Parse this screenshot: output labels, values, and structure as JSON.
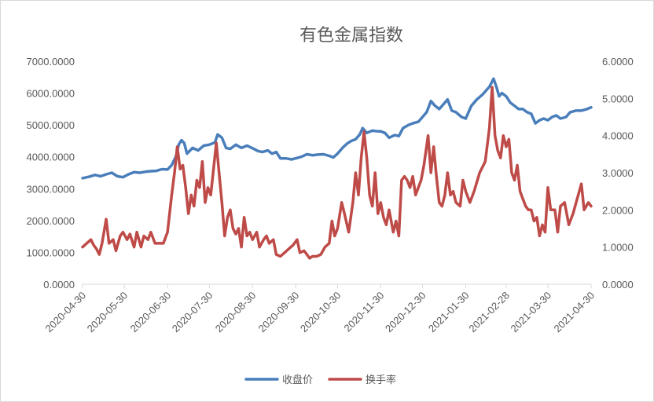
{
  "chart_data": {
    "type": "line",
    "title": "有色金属指数",
    "x_tick_labels": [
      "2020-04-30",
      "2020-05-30",
      "2020-06-30",
      "2020-07-30",
      "2020-08-30",
      "2020-09-30",
      "2020-10-30",
      "2020-11-30",
      "2020-12-30",
      "2021-01-30",
      "2021-02-28",
      "2021-03-30",
      "2021-04-30"
    ],
    "y_left": {
      "min": 0,
      "max": 7000,
      "step": 1000,
      "tick_labels": [
        "0.0000",
        "1000.0000",
        "2000.0000",
        "3000.0000",
        "4000.0000",
        "5000.0000",
        "6000.0000",
        "7000.0000"
      ]
    },
    "y_right": {
      "min": 0,
      "max": 6,
      "step": 1,
      "tick_labels": [
        "0.0000",
        "1.0000",
        "2.0000",
        "3.0000",
        "4.0000",
        "5.0000",
        "6.0000"
      ]
    },
    "grid": false,
    "legend_position": "bottom",
    "series": [
      {
        "name": "收盘价",
        "axis": "left",
        "color": "#4a7ebb",
        "points": [
          [
            "2020-04-30",
            3330
          ],
          [
            "2020-05-05",
            3380
          ],
          [
            "2020-05-09",
            3430
          ],
          [
            "2020-05-13",
            3390
          ],
          [
            "2020-05-17",
            3450
          ],
          [
            "2020-05-21",
            3500
          ],
          [
            "2020-05-25",
            3390
          ],
          [
            "2020-05-29",
            3360
          ],
          [
            "2020-06-02",
            3450
          ],
          [
            "2020-06-06",
            3520
          ],
          [
            "2020-06-10",
            3500
          ],
          [
            "2020-06-14",
            3530
          ],
          [
            "2020-06-18",
            3550
          ],
          [
            "2020-06-22",
            3560
          ],
          [
            "2020-06-26",
            3610
          ],
          [
            "2020-06-30",
            3600
          ],
          [
            "2020-07-03",
            3740
          ],
          [
            "2020-07-06",
            4010
          ],
          [
            "2020-07-08",
            4380
          ],
          [
            "2020-07-10",
            4520
          ],
          [
            "2020-07-12",
            4430
          ],
          [
            "2020-07-14",
            4100
          ],
          [
            "2020-07-18",
            4280
          ],
          [
            "2020-07-22",
            4200
          ],
          [
            "2020-07-26",
            4350
          ],
          [
            "2020-07-30",
            4380
          ],
          [
            "2020-08-03",
            4450
          ],
          [
            "2020-08-05",
            4700
          ],
          [
            "2020-08-08",
            4600
          ],
          [
            "2020-08-11",
            4280
          ],
          [
            "2020-08-14",
            4250
          ],
          [
            "2020-08-18",
            4380
          ],
          [
            "2020-08-22",
            4280
          ],
          [
            "2020-08-26",
            4350
          ],
          [
            "2020-08-30",
            4270
          ],
          [
            "2020-09-03",
            4180
          ],
          [
            "2020-09-06",
            4150
          ],
          [
            "2020-09-10",
            4200
          ],
          [
            "2020-09-13",
            4100
          ],
          [
            "2020-09-16",
            4150
          ],
          [
            "2020-09-19",
            3950
          ],
          [
            "2020-09-23",
            3950
          ],
          [
            "2020-09-27",
            3920
          ],
          [
            "2020-09-30",
            3950
          ],
          [
            "2020-10-04",
            4000
          ],
          [
            "2020-10-08",
            4080
          ],
          [
            "2020-10-12",
            4050
          ],
          [
            "2020-10-16",
            4070
          ],
          [
            "2020-10-20",
            4080
          ],
          [
            "2020-10-24",
            4030
          ],
          [
            "2020-10-27",
            3980
          ],
          [
            "2020-10-30",
            4100
          ],
          [
            "2020-11-03",
            4300
          ],
          [
            "2020-11-06",
            4420
          ],
          [
            "2020-11-09",
            4500
          ],
          [
            "2020-11-12",
            4550
          ],
          [
            "2020-11-15",
            4700
          ],
          [
            "2020-11-17",
            4900
          ],
          [
            "2020-11-20",
            4750
          ],
          [
            "2020-11-24",
            4820
          ],
          [
            "2020-11-28",
            4800
          ],
          [
            "2020-11-30",
            4800
          ],
          [
            "2020-12-03",
            4750
          ],
          [
            "2020-12-06",
            4600
          ],
          [
            "2020-12-10",
            4680
          ],
          [
            "2020-12-13",
            4650
          ],
          [
            "2020-12-16",
            4900
          ],
          [
            "2020-12-20",
            5000
          ],
          [
            "2020-12-23",
            5050
          ],
          [
            "2020-12-27",
            5100
          ],
          [
            "2020-12-30",
            5250
          ],
          [
            "2021-01-02",
            5400
          ],
          [
            "2021-01-05",
            5750
          ],
          [
            "2021-01-08",
            5600
          ],
          [
            "2021-01-11",
            5500
          ],
          [
            "2021-01-14",
            5650
          ],
          [
            "2021-01-17",
            5800
          ],
          [
            "2021-01-20",
            5450
          ],
          [
            "2021-01-23",
            5400
          ],
          [
            "2021-01-27",
            5250
          ],
          [
            "2021-01-30",
            5200
          ],
          [
            "2021-02-03",
            5600
          ],
          [
            "2021-02-07",
            5800
          ],
          [
            "2021-02-11",
            5950
          ],
          [
            "2021-02-16",
            6200
          ],
          [
            "2021-02-19",
            6450
          ],
          [
            "2021-02-21",
            6200
          ],
          [
            "2021-02-23",
            5900
          ],
          [
            "2021-02-25",
            6000
          ],
          [
            "2021-02-28",
            5900
          ],
          [
            "2021-03-03",
            5700
          ],
          [
            "2021-03-06",
            5600
          ],
          [
            "2021-03-09",
            5500
          ],
          [
            "2021-03-12",
            5500
          ],
          [
            "2021-03-15",
            5400
          ],
          [
            "2021-03-18",
            5350
          ],
          [
            "2021-03-21",
            5050
          ],
          [
            "2021-03-24",
            5150
          ],
          [
            "2021-03-27",
            5200
          ],
          [
            "2021-03-30",
            5150
          ],
          [
            "2021-04-02",
            5250
          ],
          [
            "2021-04-05",
            5300
          ],
          [
            "2021-04-08",
            5200
          ],
          [
            "2021-04-12",
            5250
          ],
          [
            "2021-04-15",
            5400
          ],
          [
            "2021-04-19",
            5450
          ],
          [
            "2021-04-23",
            5450
          ],
          [
            "2021-04-27",
            5500
          ],
          [
            "2021-04-30",
            5550
          ]
        ]
      },
      {
        "name": "换手率",
        "axis": "right",
        "color": "#be4b48",
        "points": [
          [
            "2020-04-30",
            1.0
          ],
          [
            "2020-05-03",
            1.1
          ],
          [
            "2020-05-06",
            1.2
          ],
          [
            "2020-05-08",
            1.05
          ],
          [
            "2020-05-10",
            0.95
          ],
          [
            "2020-05-12",
            0.8
          ],
          [
            "2020-05-14",
            1.1
          ],
          [
            "2020-05-17",
            1.75
          ],
          [
            "2020-05-19",
            1.1
          ],
          [
            "2020-05-22",
            1.2
          ],
          [
            "2020-05-24",
            0.9
          ],
          [
            "2020-05-27",
            1.3
          ],
          [
            "2020-05-29",
            1.4
          ],
          [
            "2020-06-01",
            1.2
          ],
          [
            "2020-06-03",
            1.35
          ],
          [
            "2020-06-06",
            1.0
          ],
          [
            "2020-06-08",
            1.4
          ],
          [
            "2020-06-11",
            1.0
          ],
          [
            "2020-06-13",
            1.3
          ],
          [
            "2020-06-16",
            1.2
          ],
          [
            "2020-06-18",
            1.4
          ],
          [
            "2020-06-21",
            1.1
          ],
          [
            "2020-06-24",
            1.1
          ],
          [
            "2020-06-27",
            1.1
          ],
          [
            "2020-06-30",
            1.4
          ],
          [
            "2020-07-03",
            2.4
          ],
          [
            "2020-07-05",
            3.0
          ],
          [
            "2020-07-07",
            3.7
          ],
          [
            "2020-07-09",
            3.1
          ],
          [
            "2020-07-11",
            3.2
          ],
          [
            "2020-07-13",
            2.6
          ],
          [
            "2020-07-15",
            1.9
          ],
          [
            "2020-07-17",
            2.4
          ],
          [
            "2020-07-19",
            2.1
          ],
          [
            "2020-07-21",
            2.8
          ],
          [
            "2020-07-23",
            2.6
          ],
          [
            "2020-07-25",
            3.3
          ],
          [
            "2020-07-27",
            2.2
          ],
          [
            "2020-07-29",
            2.6
          ],
          [
            "2020-07-31",
            2.4
          ],
          [
            "2020-08-04",
            3.8
          ],
          [
            "2020-08-06",
            3.0
          ],
          [
            "2020-08-08",
            2.2
          ],
          [
            "2020-08-10",
            1.3
          ],
          [
            "2020-08-12",
            1.8
          ],
          [
            "2020-08-14",
            2.0
          ],
          [
            "2020-08-16",
            1.5
          ],
          [
            "2020-08-18",
            1.35
          ],
          [
            "2020-08-20",
            1.5
          ],
          [
            "2020-08-22",
            1.0
          ],
          [
            "2020-08-24",
            1.8
          ],
          [
            "2020-08-26",
            1.3
          ],
          [
            "2020-08-28",
            1.4
          ],
          [
            "2020-08-30",
            1.2
          ],
          [
            "2020-09-02",
            1.4
          ],
          [
            "2020-09-04",
            1.0
          ],
          [
            "2020-09-07",
            1.2
          ],
          [
            "2020-09-09",
            1.3
          ],
          [
            "2020-09-11",
            1.1
          ],
          [
            "2020-09-14",
            1.2
          ],
          [
            "2020-09-16",
            0.8
          ],
          [
            "2020-09-19",
            0.75
          ],
          [
            "2020-09-22",
            0.85
          ],
          [
            "2020-09-25",
            0.95
          ],
          [
            "2020-09-28",
            1.05
          ],
          [
            "2020-10-01",
            1.2
          ],
          [
            "2020-10-03",
            0.85
          ],
          [
            "2020-10-06",
            0.9
          ],
          [
            "2020-10-08",
            0.8
          ],
          [
            "2020-10-10",
            0.7
          ],
          [
            "2020-10-12",
            0.75
          ],
          [
            "2020-10-15",
            0.75
          ],
          [
            "2020-10-18",
            0.8
          ],
          [
            "2020-10-21",
            1.0
          ],
          [
            "2020-10-24",
            1.1
          ],
          [
            "2020-10-26",
            1.7
          ],
          [
            "2020-10-28",
            1.3
          ],
          [
            "2020-10-30",
            1.5
          ],
          [
            "2020-11-02",
            2.2
          ],
          [
            "2020-11-04",
            1.9
          ],
          [
            "2020-11-07",
            1.4
          ],
          [
            "2020-11-10",
            2.2
          ],
          [
            "2020-11-12",
            3.0
          ],
          [
            "2020-11-14",
            2.4
          ],
          [
            "2020-11-16",
            3.4
          ],
          [
            "2020-11-18",
            4.1
          ],
          [
            "2020-11-20",
            3.4
          ],
          [
            "2020-11-22",
            2.4
          ],
          [
            "2020-11-24",
            2.1
          ],
          [
            "2020-11-26",
            3.0
          ],
          [
            "2020-11-28",
            1.9
          ],
          [
            "2020-11-30",
            2.2
          ],
          [
            "2020-12-02",
            1.8
          ],
          [
            "2020-12-04",
            1.6
          ],
          [
            "2020-12-06",
            2.0
          ],
          [
            "2020-12-09",
            1.4
          ],
          [
            "2020-12-11",
            1.7
          ],
          [
            "2020-12-13",
            1.3
          ],
          [
            "2020-12-15",
            2.8
          ],
          [
            "2020-12-17",
            2.9
          ],
          [
            "2020-12-19",
            2.8
          ],
          [
            "2020-12-21",
            2.6
          ],
          [
            "2020-12-23",
            2.9
          ],
          [
            "2020-12-25",
            2.4
          ],
          [
            "2020-12-27",
            2.6
          ],
          [
            "2020-12-29",
            2.8
          ],
          [
            "2020-12-31",
            3.2
          ],
          [
            "2021-01-03",
            4.0
          ],
          [
            "2021-01-05",
            3.0
          ],
          [
            "2021-01-07",
            3.7
          ],
          [
            "2021-01-09",
            2.9
          ],
          [
            "2021-01-11",
            2.2
          ],
          [
            "2021-01-13",
            2.1
          ],
          [
            "2021-01-15",
            2.4
          ],
          [
            "2021-01-17",
            3.0
          ],
          [
            "2021-01-19",
            2.4
          ],
          [
            "2021-01-21",
            2.5
          ],
          [
            "2021-01-23",
            2.2
          ],
          [
            "2021-01-26",
            2.1
          ],
          [
            "2021-01-28",
            2.8
          ],
          [
            "2021-01-30",
            2.5
          ],
          [
            "2021-02-02",
            2.2
          ],
          [
            "2021-02-05",
            2.5
          ],
          [
            "2021-02-09",
            3.0
          ],
          [
            "2021-02-13",
            3.3
          ],
          [
            "2021-02-16",
            4.2
          ],
          [
            "2021-02-18",
            5.3
          ],
          [
            "2021-02-20",
            4.0
          ],
          [
            "2021-02-22",
            3.6
          ],
          [
            "2021-02-24",
            3.4
          ],
          [
            "2021-02-26",
            4.0
          ],
          [
            "2021-02-28",
            3.7
          ],
          [
            "2021-03-02",
            3.9
          ],
          [
            "2021-03-04",
            3.0
          ],
          [
            "2021-03-06",
            2.8
          ],
          [
            "2021-03-08",
            3.2
          ],
          [
            "2021-03-10",
            2.5
          ],
          [
            "2021-03-12",
            2.3
          ],
          [
            "2021-03-14",
            2.1
          ],
          [
            "2021-03-16",
            2.0
          ],
          [
            "2021-03-18",
            2.0
          ],
          [
            "2021-03-20",
            1.7
          ],
          [
            "2021-03-22",
            1.8
          ],
          [
            "2021-03-24",
            1.3
          ],
          [
            "2021-03-26",
            1.6
          ],
          [
            "2021-03-28",
            1.4
          ],
          [
            "2021-03-30",
            2.6
          ],
          [
            "2021-04-01",
            2.0
          ],
          [
            "2021-04-04",
            2.0
          ],
          [
            "2021-04-06",
            1.4
          ],
          [
            "2021-04-08",
            2.1
          ],
          [
            "2021-04-11",
            2.2
          ],
          [
            "2021-04-14",
            1.6
          ],
          [
            "2021-04-17",
            1.9
          ],
          [
            "2021-04-20",
            2.3
          ],
          [
            "2021-04-23",
            2.7
          ],
          [
            "2021-04-25",
            2.0
          ],
          [
            "2021-04-28",
            2.2
          ],
          [
            "2021-04-30",
            2.1
          ]
        ]
      }
    ]
  }
}
